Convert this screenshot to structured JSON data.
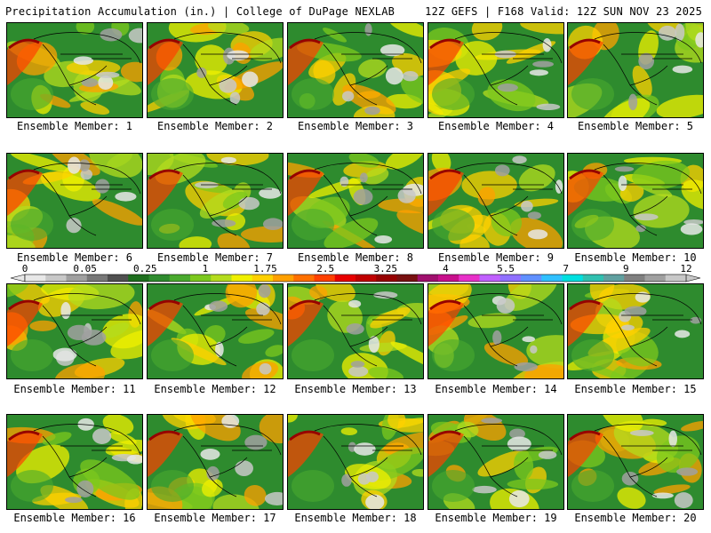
{
  "header": {
    "left_title": "Precipitation Accumulation (in.) | College of DuPage NEXLAB",
    "right_title": "12Z GEFS | F168 Valid: 12Z SUN NOV 23 2025"
  },
  "panel_label_prefix": "Ensemble Member:",
  "members": [
    {
      "label": "Ensemble Member: 1"
    },
    {
      "label": "Ensemble Member: 2"
    },
    {
      "label": "Ensemble Member: 3"
    },
    {
      "label": "Ensemble Member: 4"
    },
    {
      "label": "Ensemble Member: 5"
    },
    {
      "label": "Ensemble Member: 6"
    },
    {
      "label": "Ensemble Member: 7"
    },
    {
      "label": "Ensemble Member: 8"
    },
    {
      "label": "Ensemble Member: 9"
    },
    {
      "label": "Ensemble Member: 10"
    },
    {
      "label": "Ensemble Member: 11"
    },
    {
      "label": "Ensemble Member: 12"
    },
    {
      "label": "Ensemble Member: 13"
    },
    {
      "label": "Ensemble Member: 14"
    },
    {
      "label": "Ensemble Member: 15"
    },
    {
      "label": "Ensemble Member: 16"
    },
    {
      "label": "Ensemble Member: 17"
    },
    {
      "label": "Ensemble Member: 18"
    },
    {
      "label": "Ensemble Member: 19"
    },
    {
      "label": "Ensemble Member: 20"
    }
  ],
  "colorbar": {
    "tick_labels": [
      "0",
      "0.05",
      "0.25",
      "1",
      "1.75",
      "2.5",
      "3.25",
      "4",
      "5.5",
      "7",
      "9",
      "12"
    ],
    "colors": [
      "#e8e8e8",
      "#c8c8c8",
      "#a0a0a0",
      "#787878",
      "#505050",
      "#1e6e1e",
      "#2e8b2e",
      "#4aaa2e",
      "#7cc81e",
      "#b4dc1e",
      "#f0f000",
      "#ffd000",
      "#ffa000",
      "#ff7000",
      "#ff4000",
      "#e80000",
      "#c00000",
      "#960000",
      "#781010",
      "#a0106e",
      "#c8108c",
      "#e830c8",
      "#c060ff",
      "#9070ff",
      "#6090ff",
      "#30c0ff",
      "#00e0e0",
      "#30c0b0",
      "#60a0a0",
      "#808080",
      "#a0a0a0",
      "#c8c8c8"
    ]
  }
}
